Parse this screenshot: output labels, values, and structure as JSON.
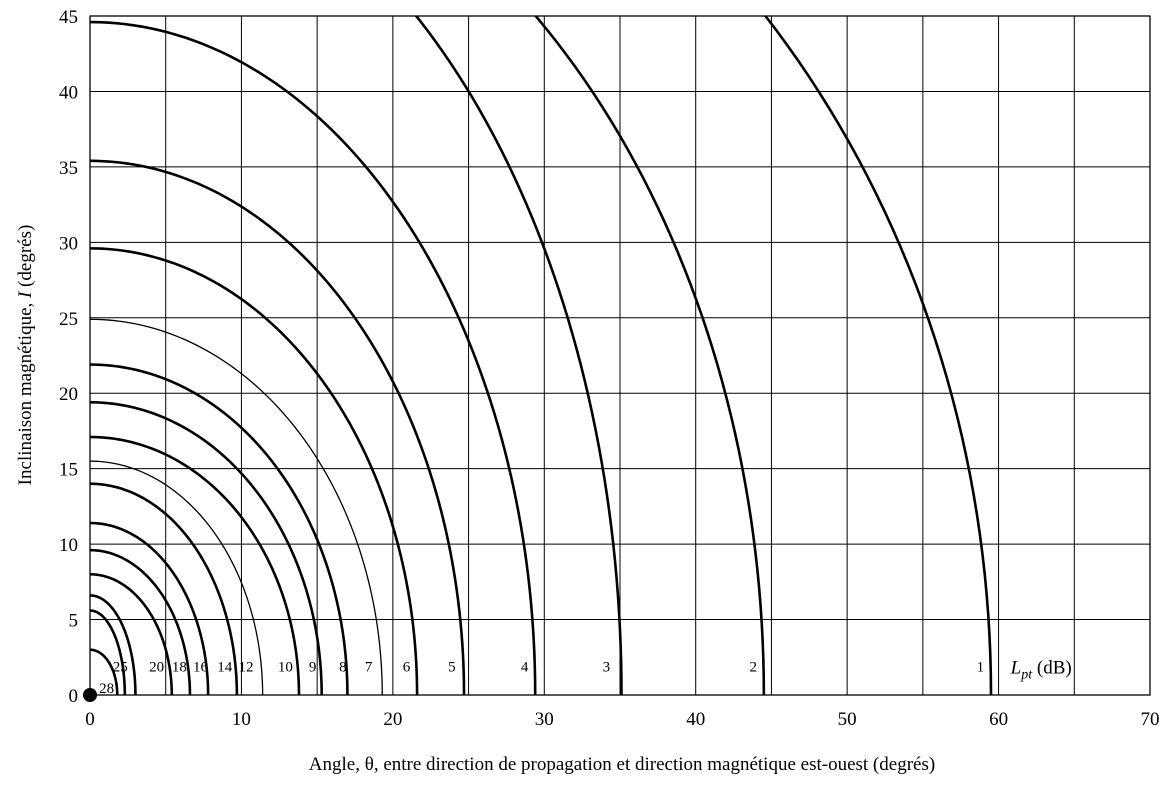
{
  "chart_data": {
    "type": "line",
    "xlabel": "Angle, θ, entre direction de propagation et direction magnétique est-ouest (degrés)",
    "ylabel_prefix": "Inclinaison magnétique, ",
    "ylabel_italic": "I",
    "ylabel_suffix": " (degrés)",
    "xlim": [
      0,
      70
    ],
    "ylim": [
      0,
      45
    ],
    "xticks": [
      0,
      10,
      20,
      30,
      40,
      50,
      60,
      70
    ],
    "yticks": [
      0,
      5,
      10,
      15,
      20,
      25,
      30,
      35,
      40,
      45
    ],
    "x_tick_labels": [
      "0",
      "10",
      "20",
      "30",
      "40",
      "50",
      "60",
      "70"
    ],
    "y_tick_labels": [
      "0",
      "5",
      "10",
      "15",
      "20",
      "25",
      "30",
      "35",
      "40",
      "45"
    ],
    "grid": true,
    "grid_x_step": 5,
    "grid_y_step": 5,
    "unit_label": {
      "italic_main": "L",
      "italic_sub": "pt",
      "suffix": " (dB)",
      "x": 60.8,
      "y": 1.9
    },
    "series": [
      {
        "label": "1",
        "x_intercept": 59.5,
        "y_intercept": 68.0,
        "label_x": 58.8,
        "label_y": 1.9,
        "weight": "bold"
      },
      {
        "label": "2",
        "x_intercept": 44.5,
        "y_intercept": 60.0,
        "label_x": 43.8,
        "label_y": 1.9,
        "weight": "bold"
      },
      {
        "label": "3",
        "x_intercept": 35.1,
        "y_intercept": 57.0,
        "label_x": 34.1,
        "label_y": 1.9,
        "weight": "bold"
      },
      {
        "label": "4",
        "x_intercept": 29.4,
        "y_intercept": 44.6,
        "label_x": 28.7,
        "label_y": 1.9,
        "weight": "bold"
      },
      {
        "label": "5",
        "x_intercept": 24.7,
        "y_intercept": 35.4,
        "label_x": 23.9,
        "label_y": 1.9,
        "weight": "bold"
      },
      {
        "label": "6",
        "x_intercept": 21.6,
        "y_intercept": 29.6,
        "label_x": 20.9,
        "label_y": 1.9,
        "weight": "bold"
      },
      {
        "label": "7",
        "x_intercept": 19.3,
        "y_intercept": 24.9,
        "label_x": 18.4,
        "label_y": 1.9,
        "weight": "normal"
      },
      {
        "label": "8",
        "x_intercept": 17.0,
        "y_intercept": 21.9,
        "label_x": 16.7,
        "label_y": 1.9,
        "weight": "bold"
      },
      {
        "label": "9",
        "x_intercept": 15.3,
        "y_intercept": 19.4,
        "label_x": 14.7,
        "label_y": 1.9,
        "weight": "bold"
      },
      {
        "label": "10",
        "x_intercept": 13.8,
        "y_intercept": 17.1,
        "label_x": 12.9,
        "label_y": 1.9,
        "weight": "bold"
      },
      {
        "label": "12",
        "x_intercept": 11.4,
        "y_intercept": 15.5,
        "label_x": 10.3,
        "label_y": 1.9,
        "weight": "normal"
      },
      {
        "label": "14",
        "x_intercept": 9.7,
        "y_intercept": 14.0,
        "label_x": 8.9,
        "label_y": 1.9,
        "weight": "bold"
      },
      {
        "label": "16",
        "x_intercept": 7.8,
        "y_intercept": 11.4,
        "label_x": 7.3,
        "label_y": 1.9,
        "weight": "bold"
      },
      {
        "label": "18",
        "x_intercept": 6.6,
        "y_intercept": 9.6,
        "label_x": 5.9,
        "label_y": 1.9,
        "weight": "bold"
      },
      {
        "label": "20",
        "x_intercept": 5.4,
        "y_intercept": 8.0,
        "label_x": 4.4,
        "label_y": 1.9,
        "weight": "bold"
      },
      {
        "label": "25",
        "x_intercept": 3.0,
        "y_intercept": 6.6,
        "label_x": 2.0,
        "label_y": 1.9,
        "weight": "bold"
      },
      {
        "label": "",
        "x_intercept": 2.3,
        "y_intercept": 5.6,
        "label_x": 0,
        "label_y": 0,
        "weight": "bold"
      },
      {
        "label": "",
        "x_intercept": 1.8,
        "y_intercept": 3.0,
        "label_x": 0,
        "label_y": 0,
        "weight": "bold"
      }
    ],
    "point": {
      "label": "28",
      "x": 0,
      "y": 0,
      "label_x": 0.6,
      "label_y": 0.45
    }
  }
}
